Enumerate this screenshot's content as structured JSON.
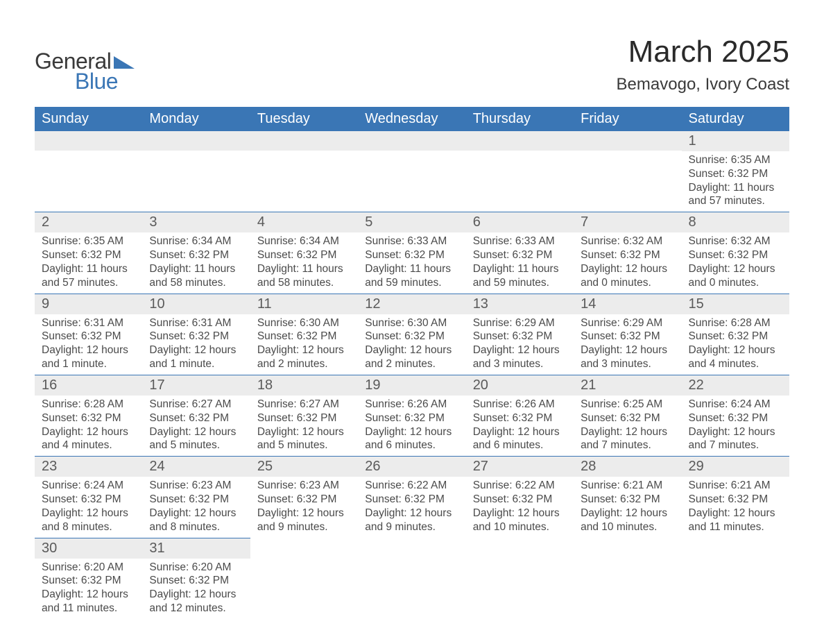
{
  "logo": {
    "text1": "General",
    "text2": "Blue",
    "shape_color": "#3a76b5"
  },
  "title": "March 2025",
  "location": "Bemavogo, Ivory Coast",
  "colors": {
    "header_bg": "#3a76b5",
    "header_text": "#ffffff",
    "daynum_bg": "#ececec",
    "text": "#4a4a4a",
    "rule": "#3a76b5"
  },
  "weekdays": [
    "Sunday",
    "Monday",
    "Tuesday",
    "Wednesday",
    "Thursday",
    "Friday",
    "Saturday"
  ],
  "weeks": [
    [
      null,
      null,
      null,
      null,
      null,
      null,
      {
        "n": "1",
        "sr": "Sunrise: 6:35 AM",
        "ss": "Sunset: 6:32 PM",
        "dl": "Daylight: 11 hours and 57 minutes."
      }
    ],
    [
      {
        "n": "2",
        "sr": "Sunrise: 6:35 AM",
        "ss": "Sunset: 6:32 PM",
        "dl": "Daylight: 11 hours and 57 minutes."
      },
      {
        "n": "3",
        "sr": "Sunrise: 6:34 AM",
        "ss": "Sunset: 6:32 PM",
        "dl": "Daylight: 11 hours and 58 minutes."
      },
      {
        "n": "4",
        "sr": "Sunrise: 6:34 AM",
        "ss": "Sunset: 6:32 PM",
        "dl": "Daylight: 11 hours and 58 minutes."
      },
      {
        "n": "5",
        "sr": "Sunrise: 6:33 AM",
        "ss": "Sunset: 6:32 PM",
        "dl": "Daylight: 11 hours and 59 minutes."
      },
      {
        "n": "6",
        "sr": "Sunrise: 6:33 AM",
        "ss": "Sunset: 6:32 PM",
        "dl": "Daylight: 11 hours and 59 minutes."
      },
      {
        "n": "7",
        "sr": "Sunrise: 6:32 AM",
        "ss": "Sunset: 6:32 PM",
        "dl": "Daylight: 12 hours and 0 minutes."
      },
      {
        "n": "8",
        "sr": "Sunrise: 6:32 AM",
        "ss": "Sunset: 6:32 PM",
        "dl": "Daylight: 12 hours and 0 minutes."
      }
    ],
    [
      {
        "n": "9",
        "sr": "Sunrise: 6:31 AM",
        "ss": "Sunset: 6:32 PM",
        "dl": "Daylight: 12 hours and 1 minute."
      },
      {
        "n": "10",
        "sr": "Sunrise: 6:31 AM",
        "ss": "Sunset: 6:32 PM",
        "dl": "Daylight: 12 hours and 1 minute."
      },
      {
        "n": "11",
        "sr": "Sunrise: 6:30 AM",
        "ss": "Sunset: 6:32 PM",
        "dl": "Daylight: 12 hours and 2 minutes."
      },
      {
        "n": "12",
        "sr": "Sunrise: 6:30 AM",
        "ss": "Sunset: 6:32 PM",
        "dl": "Daylight: 12 hours and 2 minutes."
      },
      {
        "n": "13",
        "sr": "Sunrise: 6:29 AM",
        "ss": "Sunset: 6:32 PM",
        "dl": "Daylight: 12 hours and 3 minutes."
      },
      {
        "n": "14",
        "sr": "Sunrise: 6:29 AM",
        "ss": "Sunset: 6:32 PM",
        "dl": "Daylight: 12 hours and 3 minutes."
      },
      {
        "n": "15",
        "sr": "Sunrise: 6:28 AM",
        "ss": "Sunset: 6:32 PM",
        "dl": "Daylight: 12 hours and 4 minutes."
      }
    ],
    [
      {
        "n": "16",
        "sr": "Sunrise: 6:28 AM",
        "ss": "Sunset: 6:32 PM",
        "dl": "Daylight: 12 hours and 4 minutes."
      },
      {
        "n": "17",
        "sr": "Sunrise: 6:27 AM",
        "ss": "Sunset: 6:32 PM",
        "dl": "Daylight: 12 hours and 5 minutes."
      },
      {
        "n": "18",
        "sr": "Sunrise: 6:27 AM",
        "ss": "Sunset: 6:32 PM",
        "dl": "Daylight: 12 hours and 5 minutes."
      },
      {
        "n": "19",
        "sr": "Sunrise: 6:26 AM",
        "ss": "Sunset: 6:32 PM",
        "dl": "Daylight: 12 hours and 6 minutes."
      },
      {
        "n": "20",
        "sr": "Sunrise: 6:26 AM",
        "ss": "Sunset: 6:32 PM",
        "dl": "Daylight: 12 hours and 6 minutes."
      },
      {
        "n": "21",
        "sr": "Sunrise: 6:25 AM",
        "ss": "Sunset: 6:32 PM",
        "dl": "Daylight: 12 hours and 7 minutes."
      },
      {
        "n": "22",
        "sr": "Sunrise: 6:24 AM",
        "ss": "Sunset: 6:32 PM",
        "dl": "Daylight: 12 hours and 7 minutes."
      }
    ],
    [
      {
        "n": "23",
        "sr": "Sunrise: 6:24 AM",
        "ss": "Sunset: 6:32 PM",
        "dl": "Daylight: 12 hours and 8 minutes."
      },
      {
        "n": "24",
        "sr": "Sunrise: 6:23 AM",
        "ss": "Sunset: 6:32 PM",
        "dl": "Daylight: 12 hours and 8 minutes."
      },
      {
        "n": "25",
        "sr": "Sunrise: 6:23 AM",
        "ss": "Sunset: 6:32 PM",
        "dl": "Daylight: 12 hours and 9 minutes."
      },
      {
        "n": "26",
        "sr": "Sunrise: 6:22 AM",
        "ss": "Sunset: 6:32 PM",
        "dl": "Daylight: 12 hours and 9 minutes."
      },
      {
        "n": "27",
        "sr": "Sunrise: 6:22 AM",
        "ss": "Sunset: 6:32 PM",
        "dl": "Daylight: 12 hours and 10 minutes."
      },
      {
        "n": "28",
        "sr": "Sunrise: 6:21 AM",
        "ss": "Sunset: 6:32 PM",
        "dl": "Daylight: 12 hours and 10 minutes."
      },
      {
        "n": "29",
        "sr": "Sunrise: 6:21 AM",
        "ss": "Sunset: 6:32 PM",
        "dl": "Daylight: 12 hours and 11 minutes."
      }
    ],
    [
      {
        "n": "30",
        "sr": "Sunrise: 6:20 AM",
        "ss": "Sunset: 6:32 PM",
        "dl": "Daylight: 12 hours and 11 minutes."
      },
      {
        "n": "31",
        "sr": "Sunrise: 6:20 AM",
        "ss": "Sunset: 6:32 PM",
        "dl": "Daylight: 12 hours and 12 minutes."
      },
      null,
      null,
      null,
      null,
      null
    ]
  ]
}
